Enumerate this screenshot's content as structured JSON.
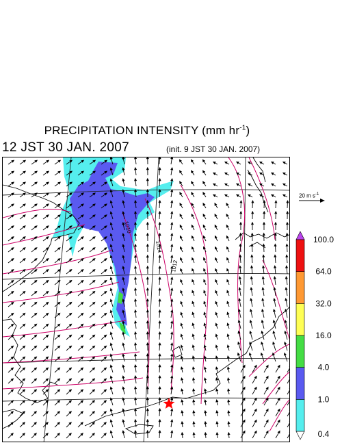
{
  "title": {
    "text": "PRECIPITATION INTENSITY (mm hr",
    "unit_exponent": "-1",
    "closing": ")"
  },
  "valid_time": "12 JST 30 JAN. 2007",
  "init_time": "(init. 9 JST 30 JAN. 2007)",
  "reference_vector": {
    "label": "20 m s",
    "exponent": "-1"
  },
  "colorbar": {
    "levels": [
      "0.4",
      "1.0",
      "4.0",
      "16.0",
      "32.0",
      "64.0",
      "100.0"
    ],
    "colors": [
      "#55eeee",
      "#5a5af0",
      "#44dd44",
      "#ffff55",
      "#ff9933",
      "#ee1111"
    ],
    "over_color": "#bb44ee",
    "under_color": "#ffffff"
  },
  "isobar_labels": [
    "1010",
    "1014",
    "1012"
  ],
  "isobar_color": "#cc0066",
  "station_marker": {
    "symbol": "star",
    "color": "#ff0000"
  }
}
